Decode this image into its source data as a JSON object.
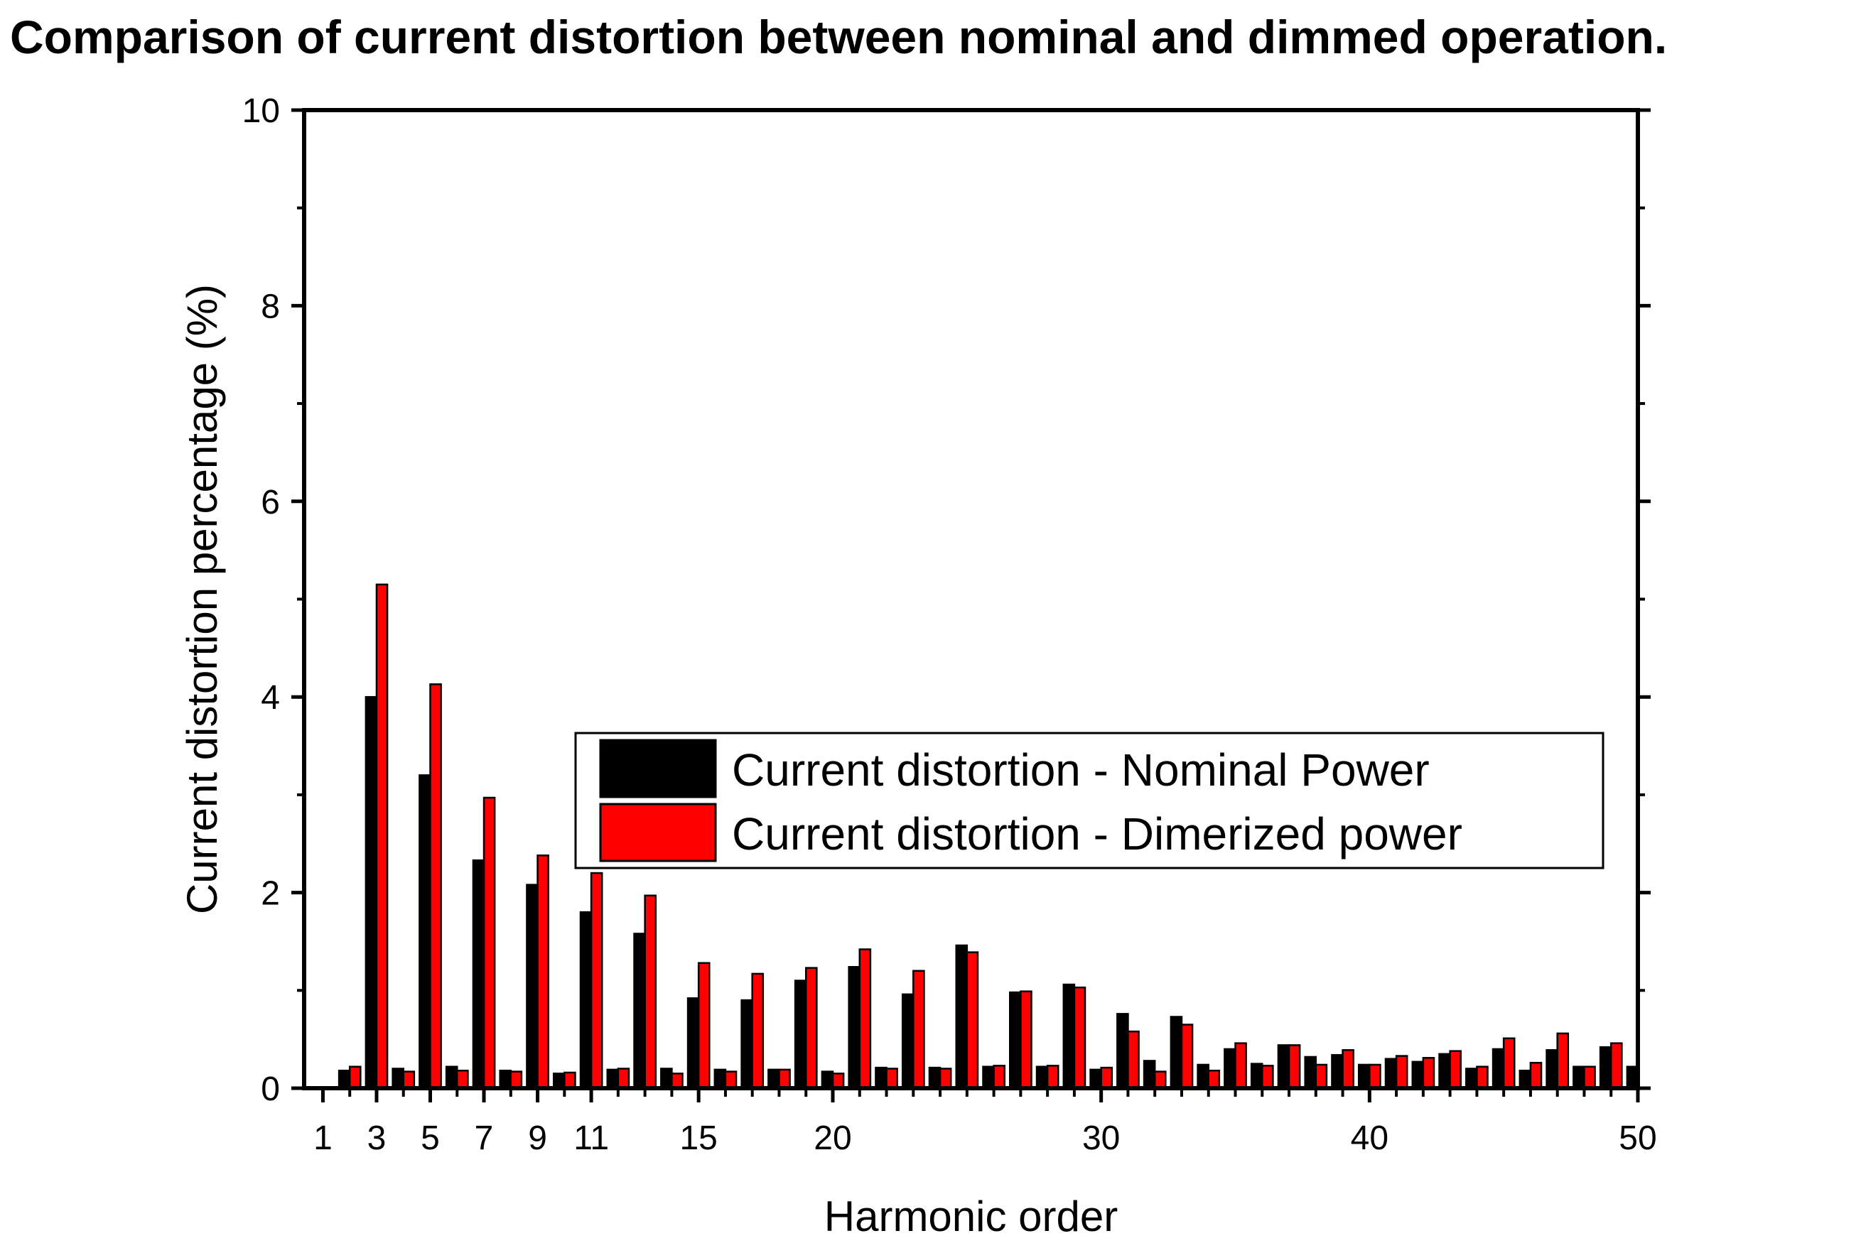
{
  "chart_data": {
    "type": "bar",
    "title": "Comparison of current distortion between nominal and dimmed operation.",
    "xlabel": "Harmonic order",
    "ylabel": "Current distortion percentage (%)",
    "xlim": [
      0.3,
      50
    ],
    "ylim": [
      0,
      10
    ],
    "xticks_major": [
      1,
      3,
      5,
      7,
      9,
      11,
      15,
      20,
      30,
      40,
      50
    ],
    "yticks_major": [
      0,
      2,
      4,
      6,
      8,
      10
    ],
    "legend_position": "center-right",
    "grid": false,
    "categories": [
      1,
      2,
      3,
      4,
      5,
      6,
      7,
      8,
      9,
      10,
      11,
      12,
      13,
      14,
      15,
      16,
      17,
      18,
      19,
      20,
      21,
      22,
      23,
      24,
      25,
      26,
      27,
      28,
      29,
      30,
      31,
      32,
      33,
      34,
      35,
      36,
      37,
      38,
      39,
      40,
      41,
      42,
      43,
      44,
      45,
      46,
      47,
      48,
      49,
      50
    ],
    "series": [
      {
        "name": "Current distortion - Nominal Power",
        "color": "#000000",
        "values": [
          0,
          0.18,
          4.0,
          0.2,
          3.2,
          0.22,
          2.33,
          0.18,
          2.08,
          0.15,
          1.8,
          0.19,
          1.58,
          0.2,
          0.92,
          0.19,
          0.9,
          0.19,
          1.1,
          0.17,
          1.24,
          0.21,
          0.96,
          0.21,
          1.46,
          0.22,
          0.98,
          0.22,
          1.06,
          0.19,
          0.76,
          0.28,
          0.73,
          0.24,
          0.4,
          0.25,
          0.44,
          0.32,
          0.34,
          0.24,
          0.3,
          0.27,
          0.35,
          0.2,
          0.4,
          0.18,
          0.39,
          0.22,
          0.42,
          0.22
        ]
      },
      {
        "name": "Current distortion - Dimerized power",
        "color": "#ff0000",
        "values": [
          0,
          0.22,
          5.15,
          0.17,
          4.13,
          0.18,
          2.97,
          0.17,
          2.38,
          0.16,
          2.2,
          0.2,
          1.97,
          0.15,
          1.28,
          0.17,
          1.17,
          0.19,
          1.23,
          0.15,
          1.42,
          0.2,
          1.2,
          0.2,
          1.39,
          0.23,
          0.99,
          0.23,
          1.03,
          0.21,
          0.58,
          0.17,
          0.65,
          0.18,
          0.46,
          0.23,
          0.44,
          0.24,
          0.39,
          0.24,
          0.33,
          0.31,
          0.38,
          0.22,
          0.51,
          0.26,
          0.56,
          0.22,
          0.46,
          0
        ]
      }
    ]
  }
}
